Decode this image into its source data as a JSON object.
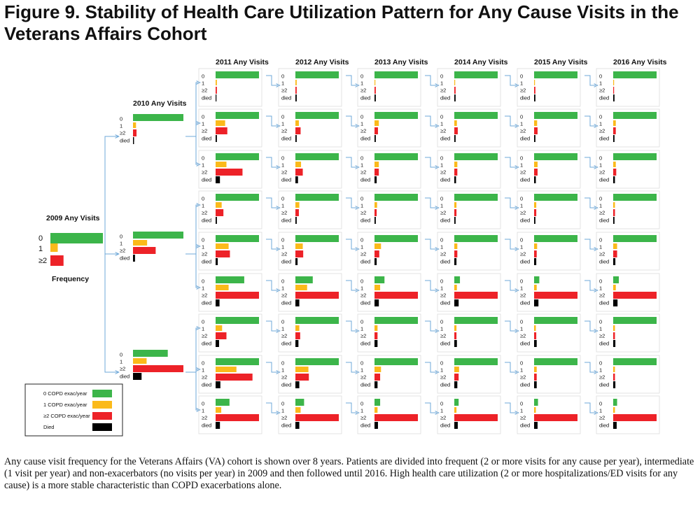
{
  "figure": {
    "title": "Figure 9. Stability of Health Care Utilization Pattern for Any Cause Visits in the Veterans Affairs Cohort",
    "caption": "Any cause visit frequency for the Veterans Affairs (VA) cohort is shown over 8 years. Patients are divided into frequent (2 or more visits for any cause per year), intermediate (1 visit per year) and non-exacerbators (no visits per year) in 2009 and then followed until 2016. High health care utilization (2 or more hospitalizations/ED visits for any cause) is a more stable characteristic than COPD exacerbations alone."
  },
  "colors": {
    "zero": "#3cb54a",
    "one": "#fbba1b",
    "two_plus": "#ed2228",
    "died": "#000000",
    "arrow": "#6fa8d8",
    "frame": "#dcdcdc"
  },
  "chart_data": {
    "type": "bar",
    "orientation": "horizontal",
    "categories": [
      "0",
      "1",
      "≥2",
      "died"
    ],
    "root": {
      "title": "2009 Any Visits",
      "axis_label": "Frequency",
      "values": [
        1.0,
        0.14,
        0.25
      ]
    },
    "level1": {
      "title": "2010 Any Visits",
      "panels": [
        [
          1.0,
          0.06,
          0.07,
          0.02
        ],
        [
          1.0,
          0.28,
          0.45,
          0.04
        ],
        [
          0.69,
          0.27,
          1.0,
          0.17
        ]
      ]
    },
    "year_titles": [
      "2011 Any Visits",
      "2012 Any Visits",
      "2013 Any Visits",
      "2014 Any Visits",
      "2015 Any Visits",
      "2016 Any Visits"
    ],
    "rows": [
      [
        [
          1.0,
          0.03,
          0.03,
          0.02
        ],
        [
          1.0,
          0.03,
          0.03,
          0.03
        ],
        [
          1.0,
          0.02,
          0.03,
          0.03
        ],
        [
          1.0,
          0.02,
          0.03,
          0.03
        ],
        [
          1.0,
          0.02,
          0.03,
          0.03
        ],
        [
          1.0,
          0.02,
          0.02,
          0.03
        ]
      ],
      [
        [
          1.0,
          0.22,
          0.27,
          0.03
        ],
        [
          1.0,
          0.08,
          0.12,
          0.03
        ],
        [
          1.0,
          0.1,
          0.08,
          0.03
        ],
        [
          1.0,
          0.06,
          0.08,
          0.03
        ],
        [
          1.0,
          0.07,
          0.08,
          0.03
        ],
        [
          1.0,
          0.06,
          0.06,
          0.03
        ]
      ],
      [
        [
          1.0,
          0.25,
          0.62,
          0.1
        ],
        [
          1.0,
          0.13,
          0.17,
          0.06
        ],
        [
          1.0,
          0.1,
          0.1,
          0.05
        ],
        [
          1.0,
          0.07,
          0.07,
          0.04
        ],
        [
          1.0,
          0.08,
          0.08,
          0.04
        ],
        [
          1.0,
          0.06,
          0.07,
          0.04
        ]
      ],
      [
        [
          1.0,
          0.14,
          0.18,
          0.03
        ],
        [
          1.0,
          0.09,
          0.08,
          0.03
        ],
        [
          1.0,
          0.06,
          0.05,
          0.03
        ],
        [
          1.0,
          0.05,
          0.05,
          0.03
        ],
        [
          1.0,
          0.05,
          0.05,
          0.03
        ],
        [
          1.0,
          0.04,
          0.04,
          0.03
        ]
      ],
      [
        [
          1.0,
          0.3,
          0.33,
          0.05
        ],
        [
          1.0,
          0.17,
          0.18,
          0.05
        ],
        [
          1.0,
          0.15,
          0.11,
          0.05
        ],
        [
          1.0,
          0.07,
          0.07,
          0.05
        ],
        [
          1.0,
          0.07,
          0.06,
          0.05
        ],
        [
          1.0,
          0.09,
          0.09,
          0.05
        ]
      ],
      [
        [
          0.66,
          0.3,
          1.0,
          0.09
        ],
        [
          0.4,
          0.27,
          1.0,
          0.09
        ],
        [
          0.23,
          0.13,
          1.0,
          0.1
        ],
        [
          0.13,
          0.06,
          1.0,
          0.1
        ],
        [
          0.12,
          0.06,
          1.0,
          0.1
        ],
        [
          0.13,
          0.06,
          1.0,
          0.1
        ]
      ],
      [
        [
          1.0,
          0.15,
          0.25,
          0.08
        ],
        [
          1.0,
          0.09,
          0.11,
          0.07
        ],
        [
          1.0,
          0.07,
          0.07,
          0.07
        ],
        [
          1.0,
          0.05,
          0.05,
          0.06
        ],
        [
          1.0,
          0.04,
          0.05,
          0.06
        ],
        [
          1.0,
          0.04,
          0.04,
          0.05
        ]
      ],
      [
        [
          1.0,
          0.48,
          0.85,
          0.11
        ],
        [
          1.0,
          0.3,
          0.31,
          0.09
        ],
        [
          1.0,
          0.15,
          0.13,
          0.07
        ],
        [
          1.0,
          0.11,
          0.1,
          0.07
        ],
        [
          1.0,
          0.06,
          0.06,
          0.06
        ],
        [
          1.0,
          0.04,
          0.04,
          0.05
        ]
      ],
      [
        [
          0.32,
          0.13,
          1.0,
          0.1
        ],
        [
          0.2,
          0.12,
          1.0,
          0.09
        ],
        [
          0.13,
          0.07,
          1.0,
          0.08
        ],
        [
          0.1,
          0.05,
          1.0,
          0.08
        ],
        [
          0.09,
          0.04,
          1.0,
          0.08
        ],
        [
          0.09,
          0.04,
          1.0,
          0.08
        ]
      ]
    ],
    "legend": {
      "position": "bottom-left",
      "items": [
        {
          "label": "0 COPD exac/year",
          "color": "#3cb54a"
        },
        {
          "label": "1 COPD exac/year",
          "color": "#fbba1b"
        },
        {
          "label": "≥2 COPD exac/year",
          "color": "#ed2228"
        },
        {
          "label": "Died",
          "color": "#000000"
        }
      ]
    }
  }
}
